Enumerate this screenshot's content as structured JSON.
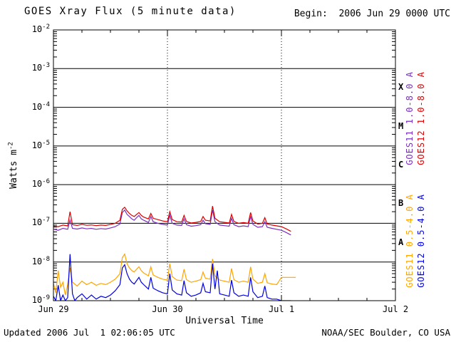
{
  "header": {
    "title": "GOES Xray Flux (5 minute data)",
    "begin": "Begin:  2006 Jun 29 0000 UTC"
  },
  "footer": {
    "updated": "Updated 2006 Jul  1 02:06:05 UTC",
    "source": "NOAA/SEC Boulder, CO USA"
  },
  "chart_data": {
    "type": "line",
    "title": "GOES Xray Flux (5 minute data)",
    "xlabel": "Universal Time",
    "ylabel": {
      "base": "Watts m",
      "sup": "-2"
    },
    "grid": "horizontal solid per decade, vertical dotted per day",
    "legend_position": "right-rotated",
    "x_axis": {
      "unit": "hours since 2006 Jun 29 0000 UTC",
      "min": 0,
      "max": 72,
      "minor_tick_hours": 6,
      "grid_t": [
        24,
        48
      ],
      "ticks": [
        {
          "t": 0,
          "label": "Jun 29"
        },
        {
          "t": 24,
          "label": "Jun 30"
        },
        {
          "t": 48,
          "label": "Jul 1"
        },
        {
          "t": 72,
          "label": "Jul 2"
        }
      ]
    },
    "y_axis": {
      "scale": "log10",
      "ylim": [
        1e-09,
        0.01
      ],
      "min_exp": -9,
      "max_exp": -2,
      "tick_exps": [
        -2,
        -3,
        -4,
        -5,
        -6,
        -7,
        -8,
        -9
      ]
    },
    "flux_classes": [
      {
        "label": "X",
        "center_exp": -3.5
      },
      {
        "label": "M",
        "center_exp": -4.5
      },
      {
        "label": "C",
        "center_exp": -5.5
      },
      {
        "label": "B",
        "center_exp": -6.5
      },
      {
        "label": "A",
        "center_exp": -7.5
      }
    ],
    "series": [
      {
        "name": "GOES11 1.0-8.0 A",
        "color": "#7a2fbe",
        "points": [
          [
            0,
            7e-08
          ],
          [
            1,
            6.6e-08
          ],
          [
            2,
            7.4e-08
          ],
          [
            3,
            7e-08
          ],
          [
            3.5,
            1.2e-07
          ],
          [
            4,
            7.4e-08
          ],
          [
            5,
            7.1e-08
          ],
          [
            6,
            7.6e-08
          ],
          [
            7,
            7.2e-08
          ],
          [
            8,
            7.4e-08
          ],
          [
            9,
            7e-08
          ],
          [
            10,
            7.3e-08
          ],
          [
            11,
            7.1e-08
          ],
          [
            12,
            7.6e-08
          ],
          [
            13,
            8.2e-08
          ],
          [
            14,
            9.6e-08
          ],
          [
            14.5,
            1.9e-07
          ],
          [
            15,
            2.2e-07
          ],
          [
            15.5,
            1.7e-07
          ],
          [
            16,
            1.5e-07
          ],
          [
            16.5,
            1.3e-07
          ],
          [
            17,
            1.2e-07
          ],
          [
            17.5,
            1.4e-07
          ],
          [
            18,
            1.6e-07
          ],
          [
            18.5,
            1.3e-07
          ],
          [
            19,
            1.2e-07
          ],
          [
            20,
            1.05e-07
          ],
          [
            20.5,
            1.5e-07
          ],
          [
            21,
            1.1e-07
          ],
          [
            22,
            1e-07
          ],
          [
            23,
            9.4e-08
          ],
          [
            24,
            9e-08
          ],
          [
            24.5,
            1.6e-07
          ],
          [
            25,
            1e-07
          ],
          [
            26,
            9e-08
          ],
          [
            27,
            8.8e-08
          ],
          [
            27.5,
            1.3e-07
          ],
          [
            28,
            9.2e-08
          ],
          [
            29,
            8.4e-08
          ],
          [
            30,
            8.7e-08
          ],
          [
            31,
            9.2e-08
          ],
          [
            31.5,
            1.2e-07
          ],
          [
            32,
            9.8e-08
          ],
          [
            33,
            9.4e-08
          ],
          [
            33.5,
            2.2e-07
          ],
          [
            34,
            1.1e-07
          ],
          [
            35,
            9e-08
          ],
          [
            36,
            8.7e-08
          ],
          [
            37,
            8.4e-08
          ],
          [
            37.5,
            1.35e-07
          ],
          [
            38,
            9.2e-08
          ],
          [
            39,
            8.2e-08
          ],
          [
            40,
            8.6e-08
          ],
          [
            41,
            8.2e-08
          ],
          [
            41.5,
            1.5e-07
          ],
          [
            42,
            9.4e-08
          ],
          [
            43,
            7.9e-08
          ],
          [
            44,
            8.2e-08
          ],
          [
            44.5,
            1.1e-07
          ],
          [
            45,
            7.9e-08
          ],
          [
            46,
            7.4e-08
          ],
          [
            47,
            7e-08
          ],
          [
            48,
            6.6e-08
          ],
          [
            49,
            5.8e-08
          ],
          [
            50,
            5e-08
          ]
        ]
      },
      {
        "name": "GOES12 1.0-8.0 A",
        "color": "#dd0000",
        "points": [
          [
            0,
            8.5e-08
          ],
          [
            1,
            8.2e-08
          ],
          [
            2,
            9e-08
          ],
          [
            3,
            8.6e-08
          ],
          [
            3.5,
            2e-07
          ],
          [
            4,
            9.2e-08
          ],
          [
            5,
            8.8e-08
          ],
          [
            6,
            9.4e-08
          ],
          [
            7,
            8.9e-08
          ],
          [
            8,
            9.1e-08
          ],
          [
            9,
            8.7e-08
          ],
          [
            10,
            9e-08
          ],
          [
            11,
            8.8e-08
          ],
          [
            12,
            9.3e-08
          ],
          [
            13,
            1e-07
          ],
          [
            14,
            1.2e-07
          ],
          [
            14.5,
            2.3e-07
          ],
          [
            15,
            2.6e-07
          ],
          [
            15.5,
            2.1e-07
          ],
          [
            16,
            1.8e-07
          ],
          [
            16.5,
            1.6e-07
          ],
          [
            17,
            1.5e-07
          ],
          [
            17.5,
            1.7e-07
          ],
          [
            18,
            1.9e-07
          ],
          [
            18.5,
            1.6e-07
          ],
          [
            19,
            1.45e-07
          ],
          [
            20,
            1.3e-07
          ],
          [
            20.5,
            1.8e-07
          ],
          [
            21,
            1.35e-07
          ],
          [
            22,
            1.25e-07
          ],
          [
            23,
            1.15e-07
          ],
          [
            24,
            1.1e-07
          ],
          [
            24.5,
            2e-07
          ],
          [
            25,
            1.25e-07
          ],
          [
            26,
            1.1e-07
          ],
          [
            27,
            1.08e-07
          ],
          [
            27.5,
            1.6e-07
          ],
          [
            28,
            1.12e-07
          ],
          [
            29,
            1.02e-07
          ],
          [
            30,
            1.06e-07
          ],
          [
            31,
            1.12e-07
          ],
          [
            31.5,
            1.5e-07
          ],
          [
            32,
            1.2e-07
          ],
          [
            33,
            1.15e-07
          ],
          [
            33.5,
            2.8e-07
          ],
          [
            34,
            1.35e-07
          ],
          [
            35,
            1.1e-07
          ],
          [
            36,
            1.06e-07
          ],
          [
            37,
            1.02e-07
          ],
          [
            37.5,
            1.7e-07
          ],
          [
            38,
            1.12e-07
          ],
          [
            39,
            1e-07
          ],
          [
            40,
            1.05e-07
          ],
          [
            41,
            1e-07
          ],
          [
            41.5,
            1.9e-07
          ],
          [
            42,
            1.15e-07
          ],
          [
            43,
            9.6e-08
          ],
          [
            44,
            1e-07
          ],
          [
            44.5,
            1.4e-07
          ],
          [
            45,
            9.6e-08
          ],
          [
            46,
            9e-08
          ],
          [
            47,
            8.6e-08
          ],
          [
            48,
            8.2e-08
          ],
          [
            49,
            7.2e-08
          ],
          [
            50,
            6.2e-08
          ]
        ]
      },
      {
        "name": "GOES11 0.5-4.0 A",
        "color": "#ffa500",
        "points": [
          [
            0,
            2.8e-09
          ],
          [
            0.5,
            1.6e-09
          ],
          [
            1,
            6e-09
          ],
          [
            1.5,
            2.2e-09
          ],
          [
            2,
            3e-09
          ],
          [
            2.5,
            1.4e-09
          ],
          [
            3,
            2.6e-09
          ],
          [
            3.5,
            7e-09
          ],
          [
            4,
            3e-09
          ],
          [
            5,
            2.4e-09
          ],
          [
            6,
            3.2e-09
          ],
          [
            7,
            2.6e-09
          ],
          [
            8,
            3e-09
          ],
          [
            9,
            2.5e-09
          ],
          [
            10,
            2.8e-09
          ],
          [
            11,
            2.6e-09
          ],
          [
            12,
            3e-09
          ],
          [
            13,
            3.6e-09
          ],
          [
            14,
            5e-09
          ],
          [
            14.5,
            1.3e-08
          ],
          [
            15,
            1.6e-08
          ],
          [
            15.5,
            9e-09
          ],
          [
            16,
            7e-09
          ],
          [
            16.5,
            6e-09
          ],
          [
            17,
            5.5e-09
          ],
          [
            17.5,
            6.5e-09
          ],
          [
            18,
            7.5e-09
          ],
          [
            18.5,
            6e-09
          ],
          [
            19,
            5.2e-09
          ],
          [
            20,
            4.4e-09
          ],
          [
            20.5,
            7.5e-09
          ],
          [
            21,
            4.6e-09
          ],
          [
            22,
            4e-09
          ],
          [
            23,
            3.6e-09
          ],
          [
            24,
            3.4e-09
          ],
          [
            24.5,
            9e-09
          ],
          [
            25,
            4.2e-09
          ],
          [
            26,
            3.4e-09
          ],
          [
            27,
            3.3e-09
          ],
          [
            27.5,
            6.5e-09
          ],
          [
            28,
            3.5e-09
          ],
          [
            29,
            3e-09
          ],
          [
            30,
            3.2e-09
          ],
          [
            31,
            3.5e-09
          ],
          [
            31.5,
            5.5e-09
          ],
          [
            32,
            3.8e-09
          ],
          [
            33,
            3.6e-09
          ],
          [
            33.5,
            1.2e-08
          ],
          [
            34,
            4.4e-09
          ],
          [
            35,
            3.4e-09
          ],
          [
            36,
            3.2e-09
          ],
          [
            37,
            3e-09
          ],
          [
            37.5,
            6.8e-09
          ],
          [
            38,
            3.5e-09
          ],
          [
            39,
            3e-09
          ],
          [
            40,
            3.2e-09
          ],
          [
            41,
            3e-09
          ],
          [
            41.5,
            7.5e-09
          ],
          [
            42,
            3.6e-09
          ],
          [
            43,
            2.8e-09
          ],
          [
            44,
            3e-09
          ],
          [
            44.5,
            5e-09
          ],
          [
            45,
            2.9e-09
          ],
          [
            46,
            2.7e-09
          ],
          [
            47,
            2.6e-09
          ],
          [
            48,
            4e-09
          ],
          [
            49,
            4e-09
          ],
          [
            50,
            4e-09
          ],
          [
            51,
            4e-09
          ]
        ]
      },
      {
        "name": "GOES12 0.5-4.0 A",
        "color": "#0000e0",
        "points": [
          [
            0,
            1.3e-09
          ],
          [
            0.5,
            1e-09
          ],
          [
            1,
            2.5e-09
          ],
          [
            1.5,
            1e-09
          ],
          [
            2,
            1.4e-09
          ],
          [
            2.5,
            1e-09
          ],
          [
            3,
            1.2e-09
          ],
          [
            3.5,
            1.6e-08
          ],
          [
            4,
            1.5e-09
          ],
          [
            4.5,
            1e-09
          ],
          [
            5,
            1.2e-09
          ],
          [
            6,
            1.5e-09
          ],
          [
            7,
            1.1e-09
          ],
          [
            8,
            1.4e-09
          ],
          [
            9,
            1.1e-09
          ],
          [
            10,
            1.3e-09
          ],
          [
            11,
            1.2e-09
          ],
          [
            12,
            1.4e-09
          ],
          [
            13,
            1.8e-09
          ],
          [
            14,
            2.6e-09
          ],
          [
            14.5,
            7e-09
          ],
          [
            15,
            8.5e-09
          ],
          [
            15.5,
            5e-09
          ],
          [
            16,
            3.6e-09
          ],
          [
            16.5,
            3e-09
          ],
          [
            17,
            2.7e-09
          ],
          [
            17.5,
            3.3e-09
          ],
          [
            18,
            4e-09
          ],
          [
            18.5,
            3e-09
          ],
          [
            19,
            2.6e-09
          ],
          [
            20,
            2e-09
          ],
          [
            20.5,
            4e-09
          ],
          [
            21,
            2.1e-09
          ],
          [
            22,
            1.8e-09
          ],
          [
            23,
            1.6e-09
          ],
          [
            24,
            1.5e-09
          ],
          [
            24.5,
            5e-09
          ],
          [
            25,
            1.9e-09
          ],
          [
            26,
            1.5e-09
          ],
          [
            27,
            1.4e-09
          ],
          [
            27.5,
            3.3e-09
          ],
          [
            28,
            1.6e-09
          ],
          [
            29,
            1.3e-09
          ],
          [
            30,
            1.4e-09
          ],
          [
            31,
            1.6e-09
          ],
          [
            31.5,
            2.8e-09
          ],
          [
            32,
            1.7e-09
          ],
          [
            33,
            1.6e-09
          ],
          [
            33.5,
            9e-09
          ],
          [
            34,
            2e-09
          ],
          [
            34.5,
            6e-09
          ],
          [
            35,
            1.5e-09
          ],
          [
            36,
            1.4e-09
          ],
          [
            37,
            1.3e-09
          ],
          [
            37.5,
            3.4e-09
          ],
          [
            38,
            1.6e-09
          ],
          [
            39,
            1.3e-09
          ],
          [
            40,
            1.4e-09
          ],
          [
            41,
            1.3e-09
          ],
          [
            41.5,
            4e-09
          ],
          [
            42,
            1.7e-09
          ],
          [
            43,
            1.2e-09
          ],
          [
            44,
            1.3e-09
          ],
          [
            44.5,
            2.4e-09
          ],
          [
            45,
            1.2e-09
          ],
          [
            46,
            1.1e-09
          ],
          [
            47,
            1.1e-09
          ],
          [
            48,
            1e-09
          ],
          [
            49,
            1e-09
          ],
          [
            50,
            1e-09
          ]
        ]
      }
    ]
  }
}
